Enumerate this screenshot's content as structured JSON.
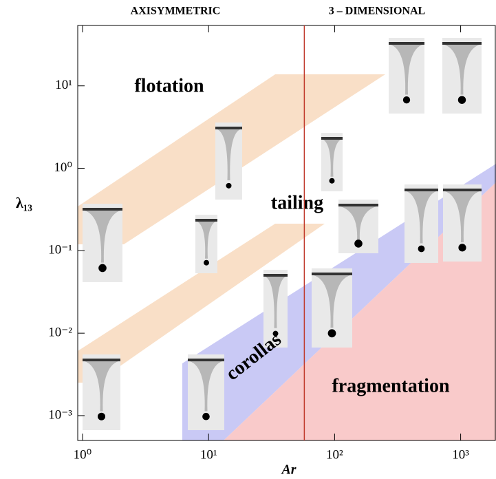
{
  "chart_data": {
    "type": "regime-map",
    "headers": [
      "AXISYMMETRIC",
      "3 – DIMENSIONAL"
    ],
    "regions": [
      "flotation",
      "tailing",
      "corollas",
      "fragmentation"
    ],
    "x_label": "Ar",
    "y_label": "λ₁₃",
    "log_x": true,
    "log_y": true,
    "xlim": [
      0.916,
      1884
    ],
    "ylim": [
      0.0005,
      54
    ],
    "xticks": [
      {
        "value": 1,
        "label": "10⁰"
      },
      {
        "value": 10,
        "label": "10¹"
      },
      {
        "value": 100,
        "label": "10²"
      },
      {
        "value": 1000,
        "label": "10³"
      }
    ],
    "yticks": [
      {
        "value": 0.001,
        "label": "10⁻³"
      },
      {
        "value": 0.01,
        "label": "10⁻²"
      },
      {
        "value": 0.1,
        "label": "10⁻¹"
      },
      {
        "value": 1,
        "label": "10⁰"
      },
      {
        "value": 10,
        "label": "10¹"
      }
    ],
    "divider_x": 57.5,
    "divider_color": "#c0392b"
  }
}
